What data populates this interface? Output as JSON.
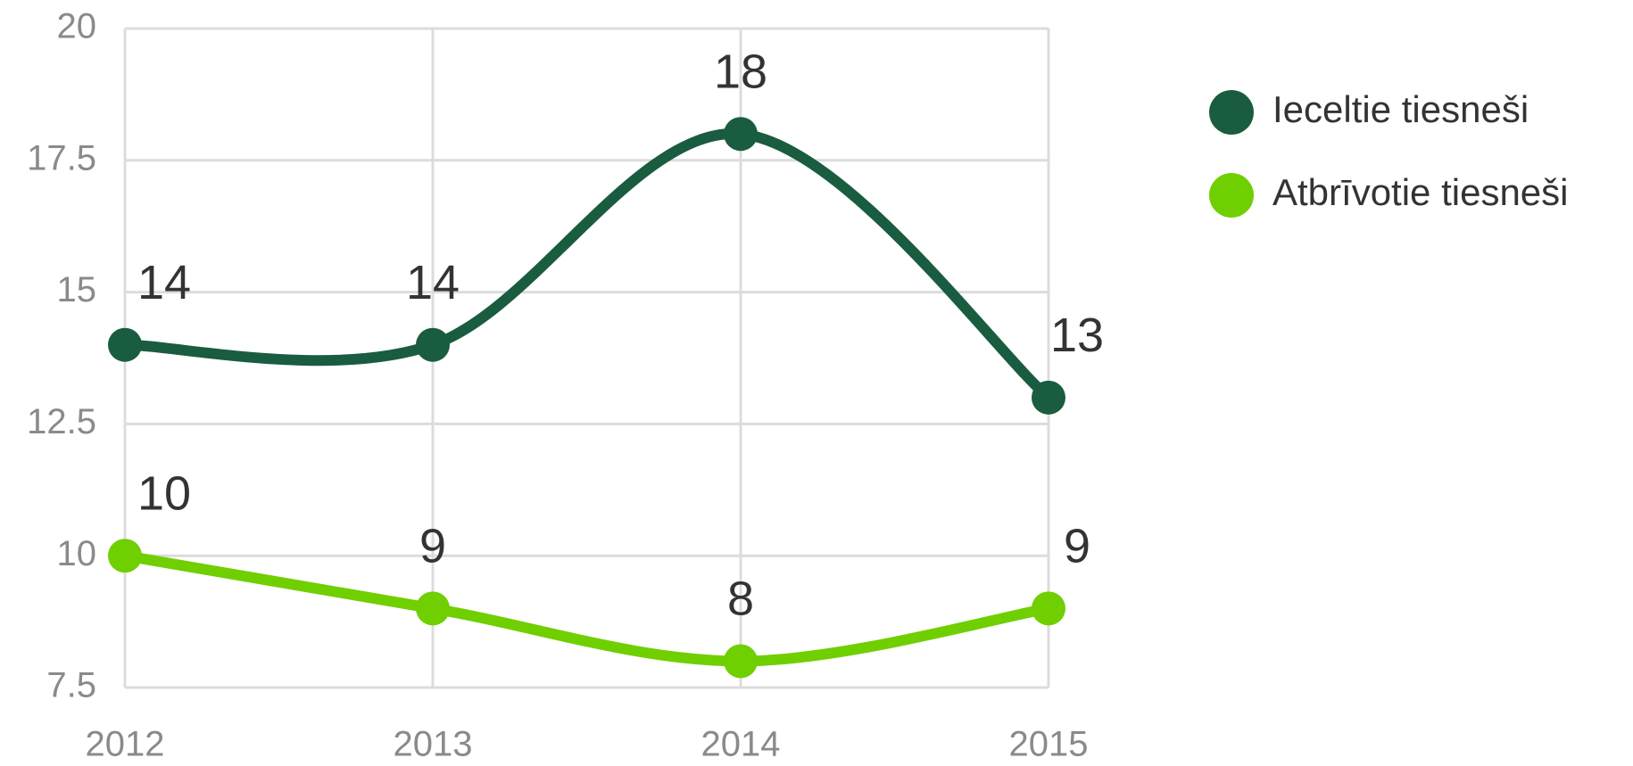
{
  "chart_data": {
    "type": "line",
    "categories": [
      "2012",
      "2013",
      "2014",
      "2015"
    ],
    "series": [
      {
        "name": "Ieceltie tiesneši",
        "color": "#1a5c40",
        "values": [
          14,
          14,
          18,
          13
        ]
      },
      {
        "name": "Atbrīvotie tiesneši",
        "color": "#6fcf00",
        "values": [
          10,
          9,
          8,
          9
        ]
      }
    ],
    "ylim": [
      7.5,
      20
    ],
    "yticks": [
      7.5,
      10,
      12.5,
      15,
      17.5,
      20
    ],
    "grid": true,
    "legend": "right",
    "smooth": true,
    "data_labels": true
  }
}
